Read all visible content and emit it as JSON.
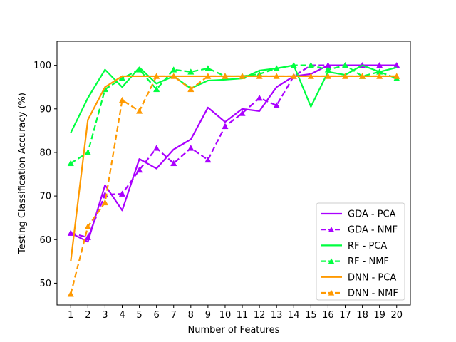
{
  "chart_data": {
    "type": "line",
    "title": "",
    "xlabel": "Number of Features",
    "ylabel": "Testing Classification Accuracy (%)",
    "x": [
      1,
      2,
      3,
      4,
      5,
      6,
      7,
      8,
      9,
      10,
      11,
      12,
      13,
      14,
      15,
      16,
      17,
      18,
      19,
      20
    ],
    "xticks": [
      "1",
      "2",
      "3",
      "4",
      "5",
      "6",
      "7",
      "8",
      "9",
      "10",
      "11",
      "12",
      "13",
      "14",
      "15",
      "16",
      "17",
      "18",
      "19",
      "20"
    ],
    "yticks": [
      50,
      60,
      70,
      80,
      90,
      100
    ],
    "xlim": [
      0.2,
      20.8
    ],
    "ylim": [
      45,
      105.5
    ],
    "grid": false,
    "legend_position": "lower right",
    "series": [
      {
        "name": "GDA - PCA",
        "color": "#aa00ff",
        "dashed": false,
        "marker": false,
        "values": [
          61.5,
          59.5,
          72.5,
          66.7,
          78.5,
          76.3,
          80.7,
          83.0,
          90.3,
          87.0,
          90.0,
          89.5,
          95.0,
          97.5,
          98.0,
          100.0,
          100.0,
          100.0,
          100.0,
          100.0
        ]
      },
      {
        "name": "GDA - NMF",
        "color": "#aa00ff",
        "dashed": true,
        "marker": true,
        "values": [
          61.5,
          60.5,
          70.3,
          70.5,
          76.0,
          81.0,
          77.5,
          81.0,
          78.3,
          86.0,
          89.0,
          92.5,
          90.8,
          97.5,
          100.0,
          100.0,
          100.0,
          100.0,
          100.0,
          100.0
        ]
      },
      {
        "name": "RF - PCA",
        "color": "#00ff40",
        "dashed": false,
        "marker": false,
        "values": [
          84.5,
          92.5,
          99.0,
          95.0,
          99.5,
          95.8,
          97.5,
          94.7,
          96.5,
          96.7,
          97.0,
          98.8,
          99.3,
          100.0,
          90.5,
          98.5,
          97.8,
          100.0,
          98.5,
          99.5
        ]
      },
      {
        "name": "RF - NMF",
        "color": "#00ff40",
        "dashed": true,
        "marker": true,
        "values": [
          77.5,
          80.0,
          94.5,
          97.0,
          99.0,
          94.5,
          99.0,
          98.5,
          99.3,
          97.5,
          97.5,
          98.0,
          99.3,
          100.0,
          100.0,
          99.0,
          100.0,
          97.5,
          98.5,
          97.0
        ]
      },
      {
        "name": "DNN - PCA",
        "color": "#ff9900",
        "dashed": false,
        "marker": false,
        "values": [
          55.0,
          87.5,
          95.0,
          97.5,
          97.5,
          97.5,
          97.5,
          97.5,
          97.5,
          97.5,
          97.5,
          97.5,
          97.5,
          97.5,
          97.5,
          97.5,
          97.5,
          97.5,
          97.5,
          97.5
        ]
      },
      {
        "name": "DNN - NMF",
        "color": "#ff9900",
        "dashed": true,
        "marker": true,
        "values": [
          47.5,
          63.0,
          68.5,
          92.0,
          89.5,
          97.5,
          97.5,
          94.5,
          97.5,
          97.5,
          97.5,
          97.5,
          97.5,
          97.5,
          97.5,
          97.5,
          97.5,
          97.5,
          97.5,
          97.5
        ]
      }
    ]
  }
}
